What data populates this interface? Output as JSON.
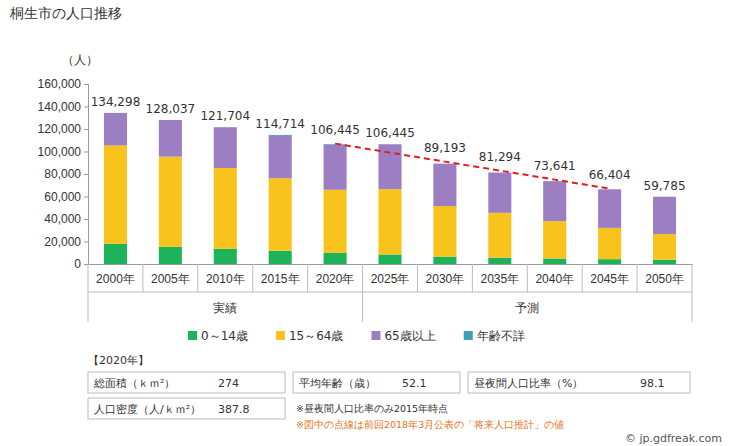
{
  "chart_data": {
    "type": "bar",
    "title": "桐生市の人口推移",
    "y_label": "（人）",
    "stacked": true,
    "grid": false,
    "legend": "bottom",
    "categories": [
      "2000年",
      "2005年",
      "2010年",
      "2015年",
      "2020年",
      "2025年",
      "2030年",
      "2035年",
      "2040年",
      "2045年",
      "2050年"
    ],
    "x_groups": [
      {
        "label": "実績",
        "count": 5
      },
      {
        "label": "予測",
        "count": 6
      }
    ],
    "series": [
      {
        "name": "0～14歳",
        "type": "bar",
        "color": "#1db35b",
        "values": [
          17900,
          15200,
          13500,
          11800,
          9800,
          8500,
          6500,
          5600,
          4900,
          4300,
          3800
        ]
      },
      {
        "name": "15～64歳",
        "type": "bar",
        "color": "#f8c31c",
        "values": [
          87500,
          80200,
          71800,
          64500,
          56200,
          58000,
          45000,
          39900,
          33200,
          27800,
          22900
        ]
      },
      {
        "name": "65歳以上",
        "type": "bar",
        "color": "#9b7fc2",
        "values": [
          28800,
          32600,
          36200,
          37600,
          39800,
          39945,
          37693,
          35794,
          35541,
          34304,
          33085
        ]
      },
      {
        "name": "年齢不詳",
        "type": "bar",
        "color": "#3f9fb5",
        "values": [
          98,
          37,
          204,
          814,
          645,
          0,
          0,
          0,
          0,
          0,
          0
        ]
      },
      {
        "type": "line",
        "color": "#e02020",
        "line_style": "dashed",
        "values": [
          null,
          null,
          null,
          null,
          107000,
          99000,
          91000,
          83000,
          75000,
          67000,
          null
        ]
      }
    ],
    "totals": [
      134298,
      128037,
      121704,
      114714,
      106445,
      106445,
      89193,
      81294,
      73641,
      66404,
      59785
    ],
    "total_labels": [
      "134,298",
      "128,037",
      "121,704",
      "114,714",
      "106,445",
      "106,445",
      "89,193",
      "81,294",
      "73,641",
      "66,404",
      "59,785"
    ],
    "ylim": [
      0,
      160000
    ],
    "yticks": [
      0,
      {
        "value": 20000,
        "label": "20,000"
      },
      {
        "value": 40000,
        "label": "40,000"
      },
      {
        "value": 60000,
        "label": "60,000"
      },
      {
        "value": 80000,
        "label": "80,000"
      },
      {
        "value": 100000,
        "label": "100,000"
      },
      {
        "value": 120000,
        "label": "120,000"
      },
      {
        "value": 140000,
        "label": "140,000"
      },
      {
        "value": 160000,
        "label": "160,000"
      }
    ]
  },
  "info": {
    "heading": "【2020年】",
    "items": [
      {
        "label": "総面積（ｋｍ²）",
        "value": 274
      },
      {
        "label": "平均年齢（歳）",
        "value": 52.1
      },
      {
        "label": "昼夜間人口比率（%）",
        "value": 98.1
      },
      {
        "label": "人口密度（人/ｋｍ²）",
        "value": 387.8
      }
    ]
  },
  "notes": [
    {
      "text": "※昼夜間人口比率のみ2015年時点",
      "color": "#333333"
    },
    {
      "text": "※図中の点線は前回2018年3月公表の「将来人口推計」の値",
      "color": "#e8731a"
    }
  ],
  "credit": "© jp.gdfreak.com"
}
